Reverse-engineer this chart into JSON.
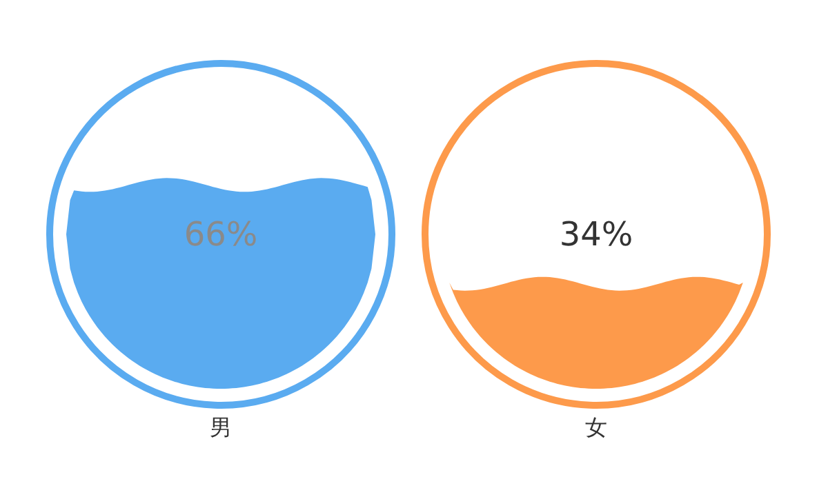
{
  "chart_data": {
    "type": "other",
    "categories": [
      "男",
      "女"
    ],
    "values": [
      66,
      34
    ],
    "value_labels": [
      "66%",
      "34%"
    ],
    "colors": [
      "#5aabf0",
      "#fd9a4b"
    ]
  }
}
